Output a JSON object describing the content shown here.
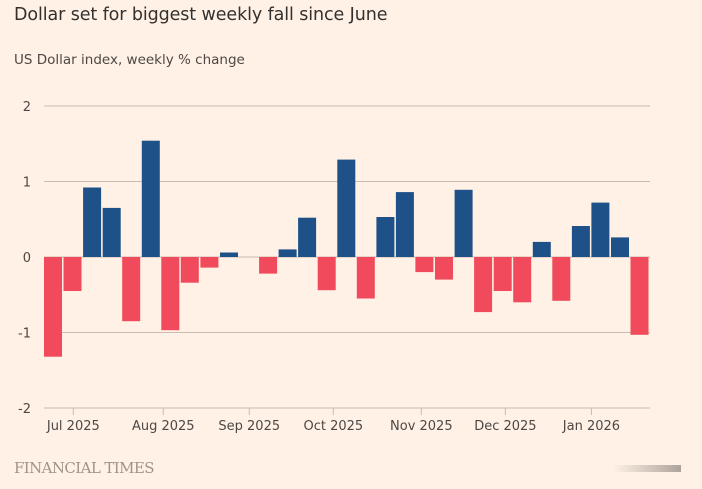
{
  "header": {
    "title": "Dollar set for biggest weekly fall since June",
    "subtitle": "US Dollar index, weekly % change"
  },
  "footer": {
    "source": "FINANCIAL TIMES"
  },
  "colors": {
    "positive": "#1f5189",
    "negative": "#f04a5c",
    "grid": "#c9bcb0",
    "background": "#fff1e5"
  },
  "chart_data": {
    "type": "bar",
    "title": "Dollar set for biggest weekly fall since June",
    "subtitle": "US Dollar index, weekly % change",
    "xlabel": "",
    "ylabel": "",
    "ylim": [
      -2,
      2
    ],
    "yticks": [
      2,
      1,
      0,
      -1,
      -2
    ],
    "grid": true,
    "legend": "none",
    "x_tick_labels": [
      "Jul 2025",
      "Aug 2025",
      "Sep 2025",
      "Oct 2025",
      "Nov 2025",
      "Dec 2025",
      "Jan 2026"
    ],
    "x_tick_positions_in_weeks": [
      1.5,
      6.1,
      10.5,
      14.8,
      19.3,
      23.6,
      28.0
    ],
    "series": [
      {
        "name": "Weekly % change",
        "values": [
          -1.32,
          -0.45,
          0.92,
          0.65,
          -0.85,
          1.54,
          -0.97,
          -0.34,
          -0.14,
          0.06,
          0.0,
          -0.22,
          0.1,
          0.52,
          -0.44,
          1.29,
          -0.55,
          0.53,
          0.86,
          -0.2,
          -0.3,
          0.89,
          -0.73,
          -0.45,
          -0.6,
          0.2,
          -0.58,
          0.41,
          0.72,
          0.26,
          -1.03
        ]
      }
    ]
  }
}
